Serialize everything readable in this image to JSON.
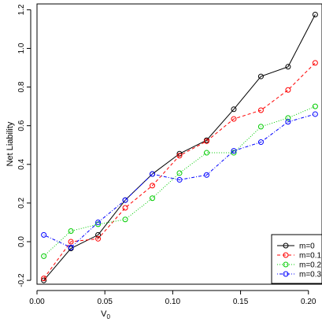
{
  "chart_data": {
    "type": "line",
    "title": "",
    "xlabel": "V",
    "xlabel_subscript": "0",
    "ylabel": "Net Liability",
    "xlim": [
      0.0,
      0.21
    ],
    "ylim": [
      -0.22,
      1.23
    ],
    "x_ticks": [
      0.0,
      0.05,
      0.1,
      0.15,
      0.2
    ],
    "x_tick_labels": [
      "0.00",
      "0.05",
      "0.10",
      "0.15",
      "0.20"
    ],
    "y_ticks": [
      -0.2,
      0.0,
      0.2,
      0.4,
      0.6,
      0.8,
      1.0,
      1.2
    ],
    "y_tick_labels": [
      "-0.2",
      "0.0",
      "0.2",
      "0.4",
      "0.6",
      "0.8",
      "1.0",
      "1.2"
    ],
    "grid": false,
    "legend_position": "bottom-right",
    "x": [
      0.005,
      0.025,
      0.045,
      0.065,
      0.085,
      0.105,
      0.125,
      0.145,
      0.165,
      0.185,
      0.205
    ],
    "series": [
      {
        "name": "m=0",
        "color": "#000000",
        "dash": "solid",
        "values": [
          -0.2,
          -0.035,
          0.035,
          0.215,
          0.35,
          0.455,
          0.525,
          0.685,
          0.855,
          0.905,
          1.175
        ]
      },
      {
        "name": "m=0.1",
        "color": "#ff0000",
        "dash": "dashed",
        "values": [
          -0.19,
          0.0,
          0.015,
          0.175,
          0.29,
          0.445,
          0.52,
          0.635,
          0.68,
          0.785,
          0.925
        ]
      },
      {
        "name": "m=0.2",
        "color": "#00cc00",
        "dash": "dotted",
        "values": [
          -0.075,
          0.055,
          0.09,
          0.115,
          0.225,
          0.355,
          0.46,
          0.46,
          0.595,
          0.64,
          0.7
        ]
      },
      {
        "name": "m=0.3",
        "color": "#0000ff",
        "dash": "dotdash",
        "values": [
          0.035,
          -0.03,
          0.1,
          0.215,
          0.35,
          0.32,
          0.345,
          0.47,
          0.515,
          0.62,
          0.66
        ]
      }
    ]
  }
}
